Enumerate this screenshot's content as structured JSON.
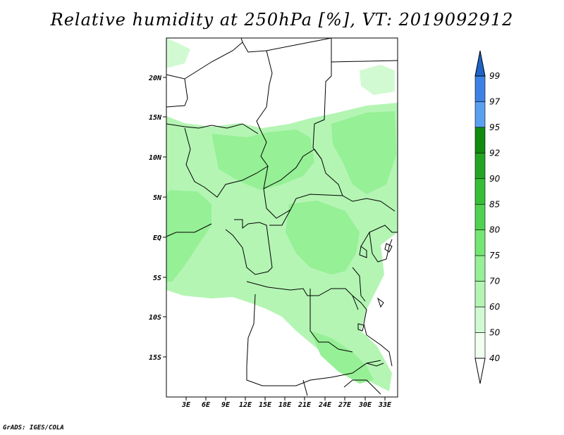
{
  "title": "Relative humidity at 250hPa [%], VT: 2019092912",
  "credit": "GrADS: IGES/COLA",
  "map": {
    "lat_ticks": [
      "20N",
      "15N",
      "10N",
      "5N",
      "EQ",
      "5S",
      "10S",
      "15S"
    ],
    "lon_ticks": [
      "3E",
      "6E",
      "9E",
      "12E",
      "15E",
      "18E",
      "21E",
      "24E",
      "27E",
      "30E",
      "33E"
    ]
  },
  "colorbar": {
    "levels": [
      "99",
      "97",
      "95",
      "92",
      "90",
      "85",
      "80",
      "75",
      "70",
      "60",
      "50",
      "40"
    ],
    "colors": {
      "99": "#1e64c8",
      "97": "#3c82e6",
      "95": "#5aa0f0",
      "92": "#0f8c0f",
      "90": "#23a523",
      "85": "#37be37",
      "80": "#50d250",
      "75": "#73e673",
      "70": "#96f096",
      "60": "#b4f5b4",
      "50": "#d2fad2",
      "40": "#f0fff0"
    }
  }
}
